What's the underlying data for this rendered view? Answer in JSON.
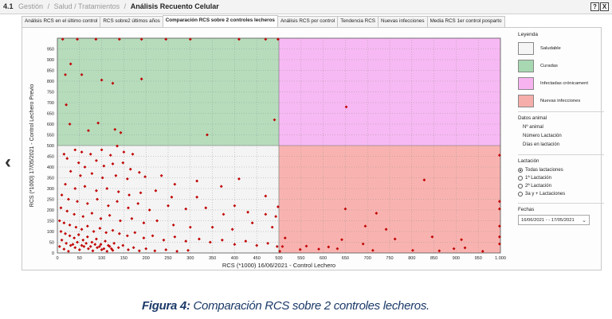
{
  "header": {
    "section_number": "4.1",
    "breadcrumb": [
      "Gestión",
      "Salud / Tratamientos"
    ],
    "current_page": "Análisis Recuento Celular",
    "help_label": "?",
    "close_label": "X"
  },
  "tabs": [
    {
      "label": "Análisis RCS en el último control",
      "active": false
    },
    {
      "label": "RCS sobre2 últimos años",
      "active": false
    },
    {
      "label": "Comparación RCS sobre 2 controles lecheros",
      "active": true
    },
    {
      "label": "Análisis RCS por control",
      "active": false
    },
    {
      "label": "Tendencia RCS",
      "active": false
    },
    {
      "label": "Nuevas infecciones",
      "active": false
    },
    {
      "label": "Media RCS 1er control posparto",
      "active": false
    }
  ],
  "nav": {
    "back_icon": "chevron-left-icon"
  },
  "legend": {
    "title": "Leyenda",
    "items": [
      {
        "label": "Saludable",
        "color": "#f5f5f5"
      },
      {
        "label": "Curadas",
        "color": "#a7d8b1"
      },
      {
        "label": "Infectadas crónicament",
        "color": "#f7b3f0"
      },
      {
        "label": "Nuevas infecciones",
        "color": "#f6aeaa"
      }
    ]
  },
  "animal_data": {
    "title": "Datos animal",
    "fields": [
      "Nº animal",
      "Número Lactación",
      "Días en lactación"
    ]
  },
  "lactation": {
    "title": "Lactación",
    "options": [
      "Todas lactaciones",
      "1ª Lactación",
      "2ª Lactación",
      "3a y + Lactaciones"
    ],
    "selected": "Todas lactaciones"
  },
  "dates": {
    "title": "Fechas",
    "selected": "16/06/2021 - - 17/05/2021"
  },
  "caption": {
    "label": "Figura 4:",
    "text": " Comparación RCS sobre 2 controles lecheros."
  },
  "chart_data": {
    "type": "scatter",
    "xlabel": "RCS (*1000) 16/06/2021 - Control Lechero",
    "ylabel": "RCS (*1000) 17/05/2021 - Control Lechero Previo",
    "xlim": [
      0,
      1000
    ],
    "ylim": [
      0,
      1000
    ],
    "threshold": 500,
    "xticks": [
      0,
      50,
      100,
      150,
      200,
      250,
      300,
      350,
      400,
      450,
      500,
      550,
      600,
      650,
      700,
      750,
      800,
      850,
      900,
      950,
      "1.000"
    ],
    "yticks": [
      0,
      50,
      100,
      150,
      200,
      250,
      300,
      350,
      400,
      450,
      500,
      550,
      600,
      650,
      700,
      750,
      800,
      850,
      900,
      950
    ],
    "grid": true,
    "quadrant_colors": {
      "top_left": "#b6dcbc",
      "top_right": "#f7b9f3",
      "bottom_left": "#f4f4f4",
      "bottom_right": "#f8b3b0"
    },
    "point_color": "#c00000",
    "points": [
      [
        12,
        995
      ],
      [
        45,
        995
      ],
      [
        87,
        995
      ],
      [
        140,
        995
      ],
      [
        190,
        995
      ],
      [
        245,
        995
      ],
      [
        300,
        995
      ],
      [
        410,
        995
      ],
      [
        470,
        995
      ],
      [
        498,
        995
      ],
      [
        18,
        830
      ],
      [
        30,
        880
      ],
      [
        55,
        830
      ],
      [
        100,
        805
      ],
      [
        125,
        790
      ],
      [
        190,
        810
      ],
      [
        20,
        690
      ],
      [
        28,
        600
      ],
      [
        92,
        605
      ],
      [
        70,
        570
      ],
      [
        130,
        575
      ],
      [
        143,
        560
      ],
      [
        338,
        550
      ],
      [
        490,
        620
      ],
      [
        652,
        680
      ],
      [
        15,
        460
      ],
      [
        40,
        480
      ],
      [
        55,
        470
      ],
      [
        75,
        460
      ],
      [
        100,
        480
      ],
      [
        120,
        455
      ],
      [
        135,
        498
      ],
      [
        150,
        470
      ],
      [
        170,
        460
      ],
      [
        22,
        440
      ],
      [
        48,
        420
      ],
      [
        62,
        400
      ],
      [
        88,
        430
      ],
      [
        105,
        405
      ],
      [
        125,
        415
      ],
      [
        148,
        420
      ],
      [
        165,
        390
      ],
      [
        185,
        375
      ],
      [
        30,
        380
      ],
      [
        52,
        360
      ],
      [
        78,
        370
      ],
      [
        102,
        350
      ],
      [
        132,
        360
      ],
      [
        158,
        345
      ],
      [
        198,
        355
      ],
      [
        235,
        360
      ],
      [
        265,
        320
      ],
      [
        315,
        335
      ],
      [
        370,
        310
      ],
      [
        410,
        345
      ],
      [
        18,
        320
      ],
      [
        40,
        300
      ],
      [
        62,
        310
      ],
      [
        88,
        290
      ],
      [
        112,
        300
      ],
      [
        138,
        285
      ],
      [
        162,
        270
      ],
      [
        188,
        280
      ],
      [
        222,
        290
      ],
      [
        258,
        260
      ],
      [
        315,
        260
      ],
      [
        400,
        220
      ],
      [
        470,
        265
      ],
      [
        498,
        215
      ],
      [
        10,
        270
      ],
      [
        25,
        250
      ],
      [
        45,
        240
      ],
      [
        68,
        230
      ],
      [
        90,
        250
      ],
      [
        115,
        220
      ],
      [
        135,
        240
      ],
      [
        160,
        210
      ],
      [
        182,
        230
      ],
      [
        208,
        200
      ],
      [
        250,
        220
      ],
      [
        290,
        205
      ],
      [
        335,
        210
      ],
      [
        375,
        180
      ],
      [
        430,
        190
      ],
      [
        470,
        180
      ],
      [
        493,
        170
      ],
      [
        8,
        210
      ],
      [
        22,
        195
      ],
      [
        38,
        180
      ],
      [
        58,
        170
      ],
      [
        78,
        185
      ],
      [
        98,
        160
      ],
      [
        118,
        175
      ],
      [
        142,
        150
      ],
      [
        168,
        160
      ],
      [
        195,
        140
      ],
      [
        225,
        150
      ],
      [
        262,
        130
      ],
      [
        300,
        120
      ],
      [
        350,
        120
      ],
      [
        395,
        110
      ],
      [
        440,
        140
      ],
      [
        485,
        120
      ],
      [
        5,
        150
      ],
      [
        15,
        140
      ],
      [
        28,
        130
      ],
      [
        42,
        120
      ],
      [
        55,
        110
      ],
      [
        68,
        125
      ],
      [
        82,
        100
      ],
      [
        96,
        115
      ],
      [
        110,
        95
      ],
      [
        125,
        105
      ],
      [
        140,
        90
      ],
      [
        158,
        80
      ],
      [
        175,
        95
      ],
      [
        195,
        70
      ],
      [
        215,
        80
      ],
      [
        240,
        60
      ],
      [
        265,
        75
      ],
      [
        290,
        55
      ],
      [
        320,
        65
      ],
      [
        345,
        50
      ],
      [
        372,
        60
      ],
      [
        400,
        40
      ],
      [
        425,
        55
      ],
      [
        450,
        35
      ],
      [
        475,
        45
      ],
      [
        496,
        30
      ],
      [
        8,
        100
      ],
      [
        18,
        90
      ],
      [
        28,
        80
      ],
      [
        38,
        70
      ],
      [
        48,
        85
      ],
      [
        58,
        60
      ],
      [
        68,
        75
      ],
      [
        78,
        50
      ],
      [
        88,
        65
      ],
      [
        98,
        40
      ],
      [
        108,
        55
      ],
      [
        118,
        30
      ],
      [
        128,
        45
      ],
      [
        138,
        25
      ],
      [
        148,
        35
      ],
      [
        160,
        15
      ],
      [
        172,
        25
      ],
      [
        185,
        10
      ],
      [
        200,
        20
      ],
      [
        220,
        10
      ],
      [
        245,
        15
      ],
      [
        270,
        8
      ],
      [
        295,
        12
      ],
      [
        10,
        60
      ],
      [
        20,
        45
      ],
      [
        30,
        35
      ],
      [
        40,
        25
      ],
      [
        50,
        15
      ],
      [
        60,
        30
      ],
      [
        70,
        20
      ],
      [
        80,
        10
      ],
      [
        90,
        25
      ],
      [
        100,
        15
      ],
      [
        112,
        8
      ],
      [
        122,
        20
      ],
      [
        5,
        30
      ],
      [
        15,
        18
      ],
      [
        25,
        8
      ],
      [
        35,
        40
      ],
      [
        45,
        50
      ],
      [
        55,
        35
      ],
      [
        65,
        45
      ],
      [
        75,
        30
      ],
      [
        85,
        40
      ],
      [
        95,
        30
      ],
      [
        105,
        20
      ],
      [
        115,
        35
      ],
      [
        125,
        12
      ],
      [
        650,
        205
      ],
      [
        720,
        185
      ],
      [
        695,
        125
      ],
      [
        742,
        110
      ],
      [
        828,
        340
      ],
      [
        895,
        20
      ],
      [
        912,
        62
      ],
      [
        642,
        62
      ],
      [
        690,
        42
      ],
      [
        762,
        65
      ],
      [
        846,
        75
      ],
      [
        612,
        28
      ],
      [
        562,
        32
      ],
      [
        548,
        16
      ],
      [
        590,
        18
      ],
      [
        632,
        20
      ],
      [
        712,
        12
      ],
      [
        802,
        12
      ],
      [
        862,
        10
      ],
      [
        920,
        24
      ],
      [
        960,
        8
      ],
      [
        998,
        42
      ],
      [
        998,
        75
      ],
      [
        998,
        125
      ],
      [
        998,
        205
      ],
      [
        998,
        240
      ],
      [
        998,
        455
      ],
      [
        502,
        8
      ],
      [
        508,
        30
      ],
      [
        514,
        70
      ]
    ]
  }
}
